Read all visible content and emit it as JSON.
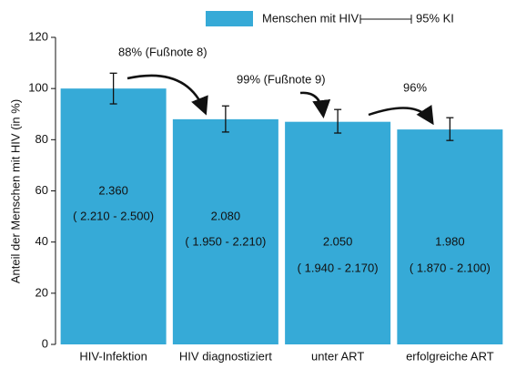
{
  "chart_data": {
    "type": "bar",
    "y_label": "Anteil der Menschen mit HIV (in %)",
    "categories": [
      "HIV-Infektion",
      "HIV diagnostiziert",
      "unter ART",
      "erfolgreiche ART"
    ],
    "series": [
      {
        "name": "Menschen mit HIV",
        "color": "#36aad7",
        "values": [
          100,
          88,
          87,
          84
        ],
        "ci_low": [
          94,
          83,
          82.6,
          79.7
        ],
        "ci_high": [
          106,
          93.2,
          91.8,
          88.6
        ],
        "ci_name": "95% KI"
      }
    ],
    "bar_texts": [
      {
        "count": "2.360",
        "range": "( 2.210 -  2.500)"
      },
      {
        "count": "2.080",
        "range": "( 1.950 -  2.210)"
      },
      {
        "count": "2.050",
        "range": "( 1.940 -  2.170)"
      },
      {
        "count": "1.980",
        "range": "( 1.870 -  2.100)"
      }
    ],
    "arrow_labels": [
      "88% (Fußnote 8)",
      "99%  (Fußnote 9)",
      "96%"
    ],
    "ylim": [
      0,
      120
    ],
    "yticks": [
      0,
      20,
      40,
      60,
      80,
      100,
      120
    ],
    "grid": false,
    "legend": "top-right"
  }
}
